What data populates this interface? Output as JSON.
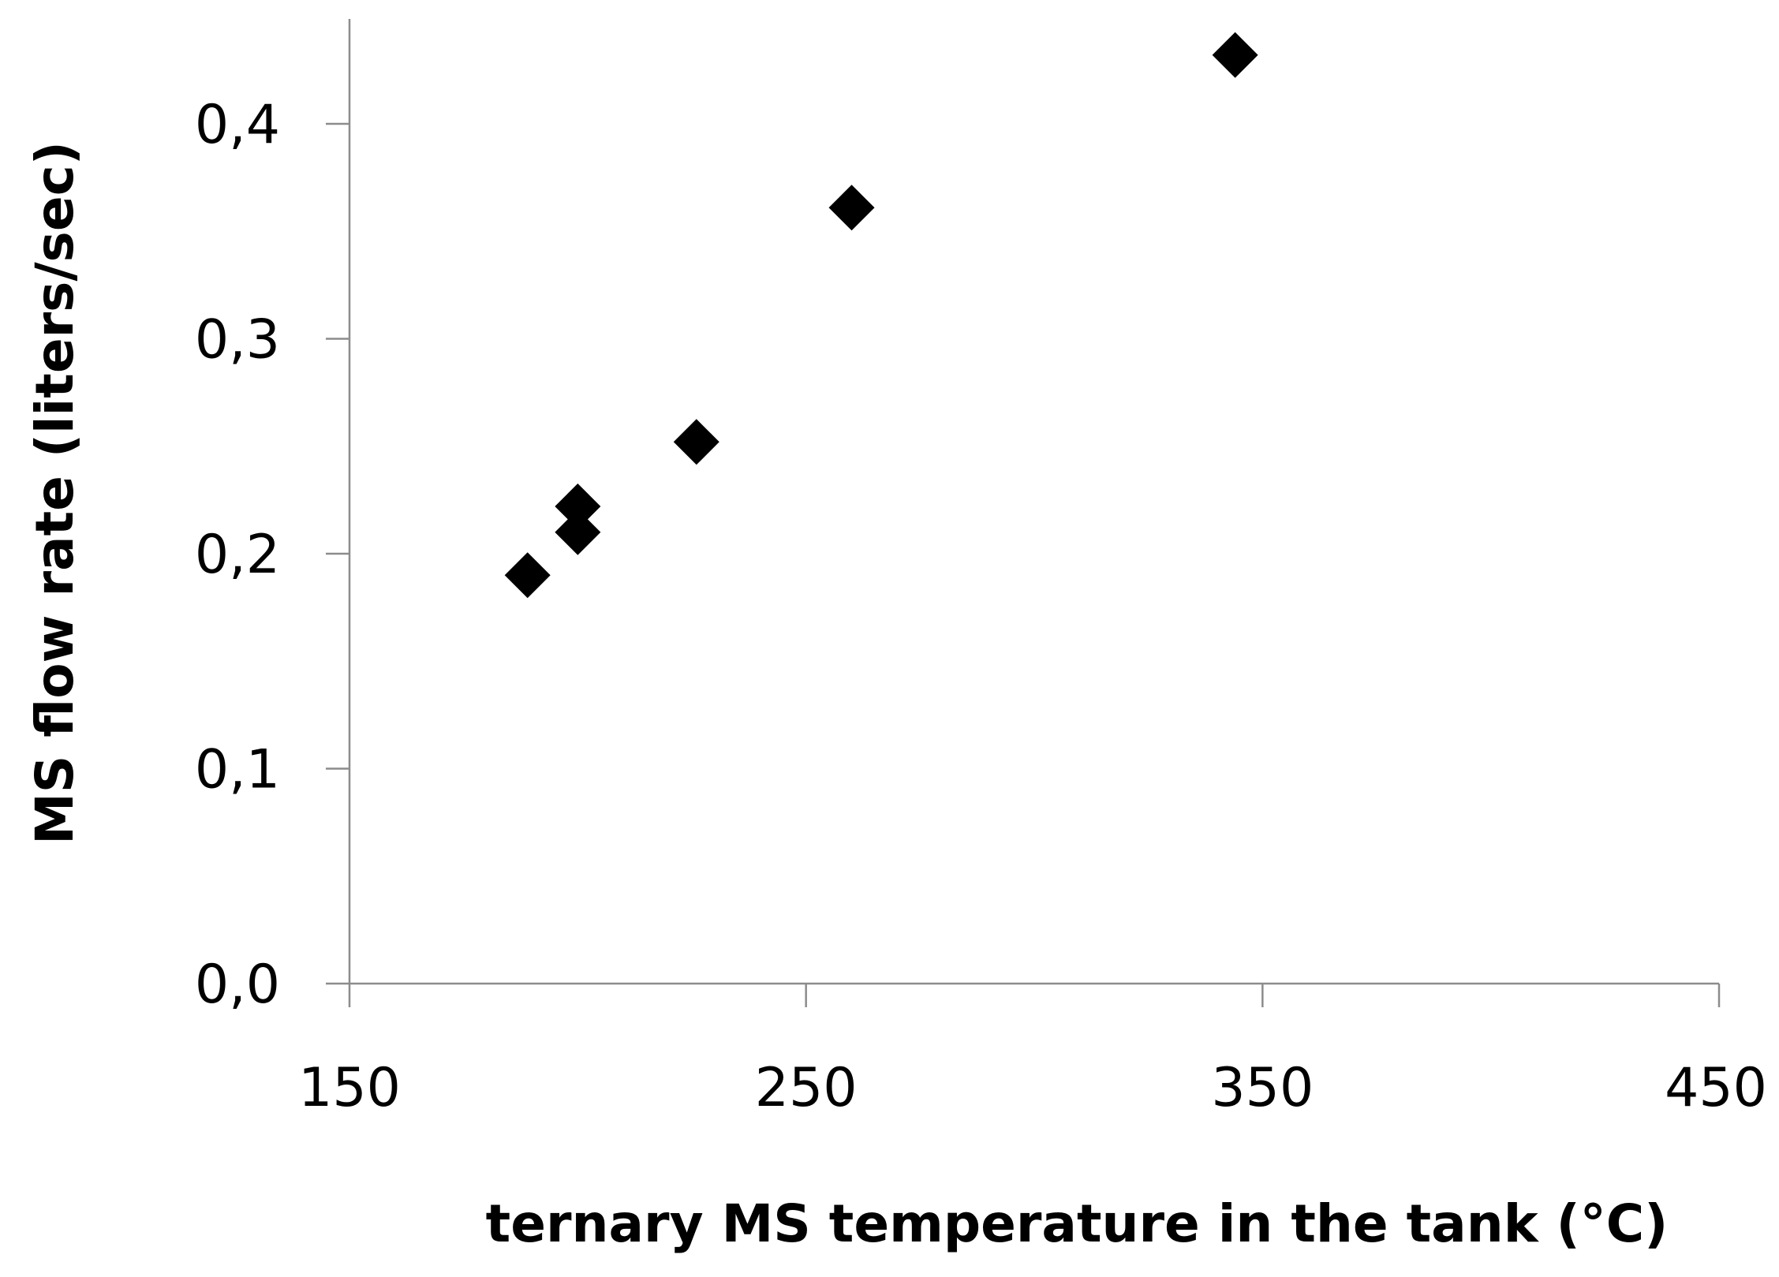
{
  "chart_data": {
    "type": "scatter",
    "title": "",
    "xlabel": "ternary MS temperature in the tank (°C)",
    "ylabel": "MS flow rate (liters/sec)",
    "xlim": [
      150,
      450
    ],
    "ylim": [
      0,
      0.4
    ],
    "x_ticks": [
      "150",
      "250",
      "350",
      "450"
    ],
    "y_ticks": [
      "0,0",
      "0,1",
      "0,2",
      "0,3",
      "0,4"
    ],
    "grid": false,
    "legend": "none",
    "marker": "diamond",
    "marker_color": "#000000",
    "series": [
      {
        "points": [
          {
            "x": 189,
            "y": 0.19
          },
          {
            "x": 200,
            "y": 0.222
          },
          {
            "x": 200,
            "y": 0.21
          },
          {
            "x": 226,
            "y": 0.252
          },
          {
            "x": 260,
            "y": 0.361
          },
          {
            "x": 344,
            "y": 0.432
          }
        ]
      }
    ]
  }
}
